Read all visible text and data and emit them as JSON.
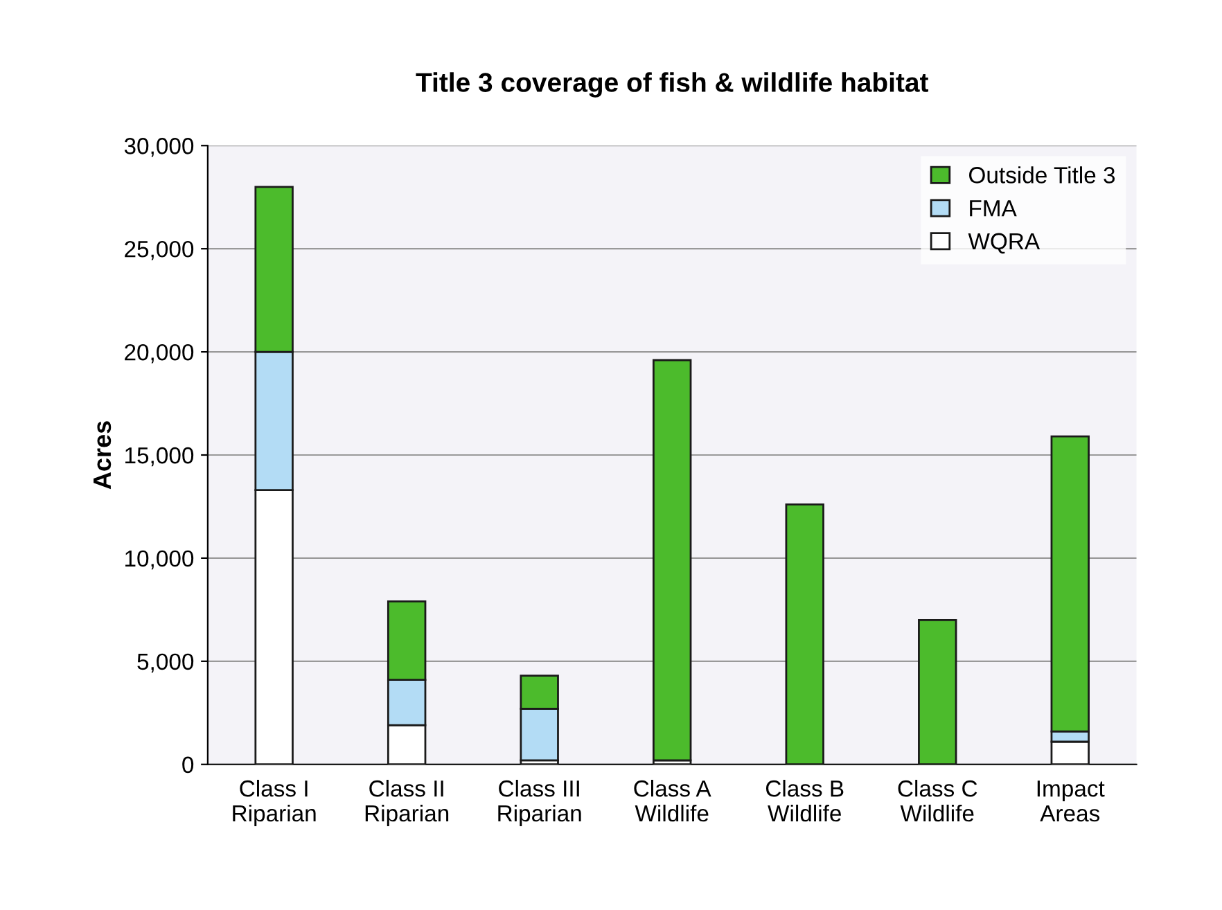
{
  "chart_data": {
    "type": "bar",
    "title": "Title 3 coverage of fish & wildlife habitat",
    "ylabel": "Acres",
    "categories": [
      "Class I\nRiparian",
      "Class II\nRiparian",
      "Class III\nRiparian",
      "Class A\nWildlife",
      "Class B\nWildlife",
      "Class C\nWildlife",
      "Impact\nAreas"
    ],
    "stacked": true,
    "series": [
      {
        "name": "WQRA",
        "color": "#ffffff",
        "values": [
          13300,
          1900,
          200,
          200,
          null,
          null,
          1100
        ]
      },
      {
        "name": "FMA",
        "color": "#b3dcf5",
        "values": [
          6700,
          2200,
          2500,
          null,
          null,
          null,
          500
        ]
      },
      {
        "name": "Outside Title 3",
        "color": "#4cbb2c",
        "values": [
          8000,
          3800,
          1600,
          19400,
          12600,
          7000,
          14300
        ]
      }
    ],
    "ylim": [
      0,
      30000
    ],
    "yticks": [
      {
        "value": 0,
        "label": "0"
      },
      {
        "value": 5000,
        "label": "5,000"
      },
      {
        "value": 10000,
        "label": "10,000"
      },
      {
        "value": 15000,
        "label": "15,000"
      },
      {
        "value": 20000,
        "label": "20,000"
      },
      {
        "value": 25000,
        "label": "25,000"
      },
      {
        "value": 30000,
        "label": "30,000"
      }
    ],
    "grid": "y",
    "legend": "top right"
  }
}
